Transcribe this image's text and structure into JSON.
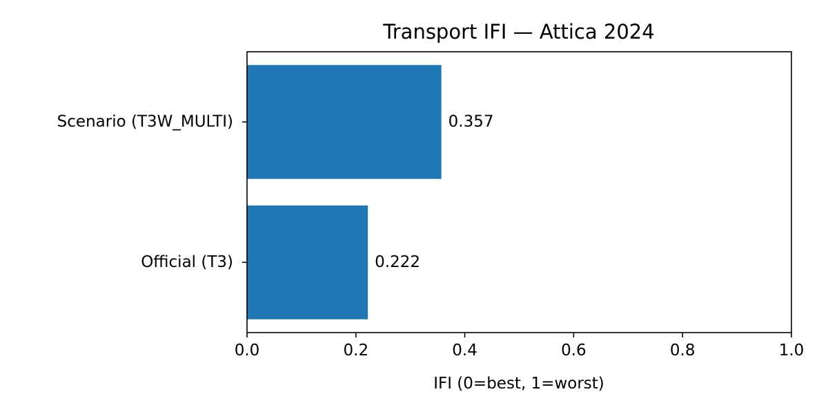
{
  "chart_data": {
    "type": "bar",
    "orientation": "horizontal",
    "title": "Transport IFI — Attica 2024",
    "xlabel": "IFI (0=best, 1=worst)",
    "ylabel": "",
    "xlim": [
      0,
      1
    ],
    "xticks": [
      "0.0",
      "0.2",
      "0.4",
      "0.6",
      "0.8",
      "1.0"
    ],
    "categories": [
      "Official (T3)",
      "Scenario (T3W_MULTI)"
    ],
    "values": [
      0.222,
      0.357
    ],
    "value_labels": [
      "0.222",
      "0.357"
    ],
    "bar_color": "#1f77b4",
    "grid": false
  }
}
